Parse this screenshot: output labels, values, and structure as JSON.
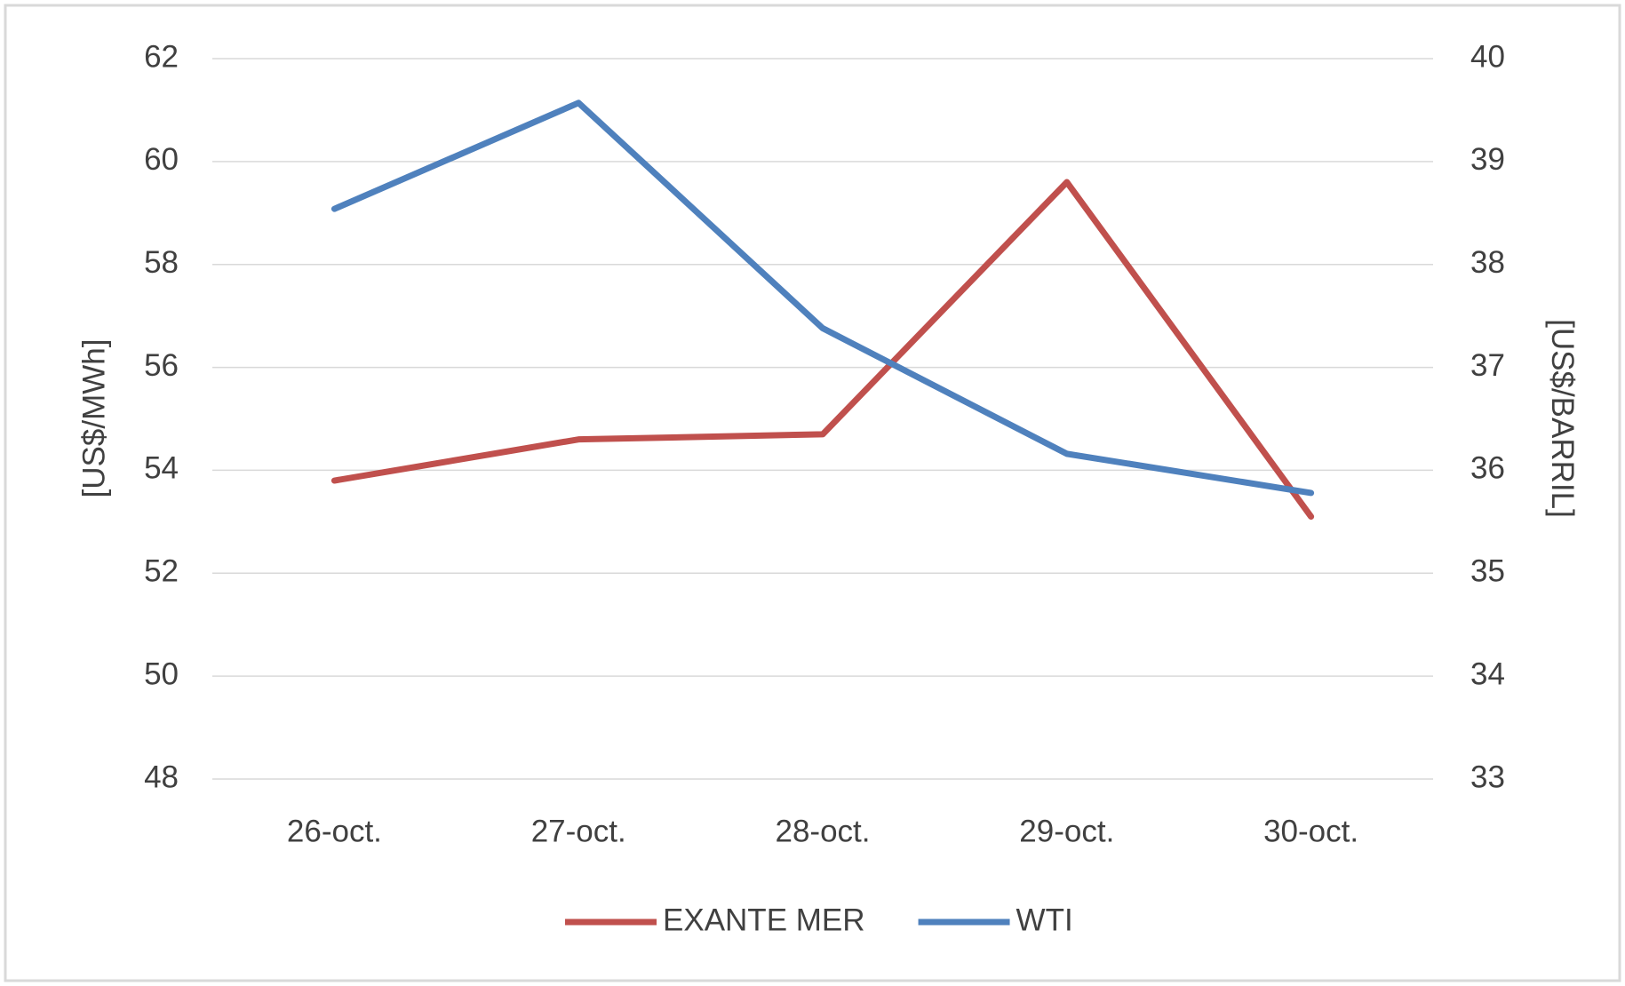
{
  "chart_data": {
    "type": "line",
    "categories": [
      "26-oct.",
      "27-oct.",
      "28-oct.",
      "29-oct.",
      "30-oct."
    ],
    "series": [
      {
        "name": "EXANTE MER",
        "color": "#c0504d",
        "values": [
          53.8,
          54.6,
          54.7,
          59.6,
          53.1
        ]
      },
      {
        "name": "WTI",
        "color": "#4f81bd",
        "axis": "y2",
        "values": [
          38.54,
          39.57,
          37.38,
          36.16,
          35.78
        ]
      }
    ],
    "ylabel": "[US$/MWh]",
    "y2label": "[US$/BARRIL]",
    "ylim": [
      48,
      62
    ],
    "yticks": [
      48,
      50,
      52,
      54,
      56,
      58,
      60,
      62
    ],
    "y2lim": [
      33,
      40
    ],
    "y2ticks": [
      33,
      34,
      35,
      36,
      37,
      38,
      39,
      40
    ],
    "grid": true,
    "legend": "bottom"
  }
}
